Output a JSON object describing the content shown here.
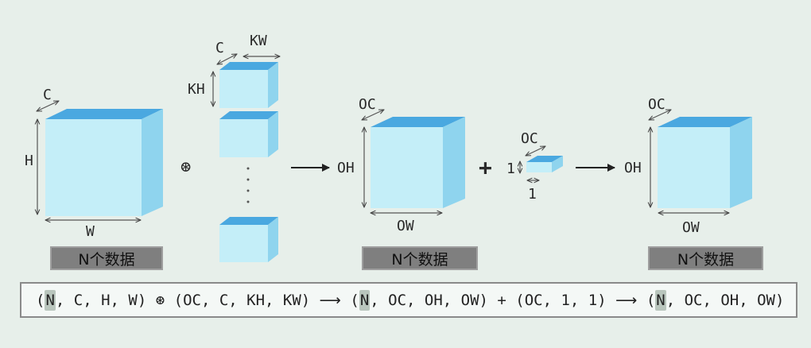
{
  "input_tensor": {
    "channel_label": "C",
    "height_label": "H",
    "width_label": "W",
    "count_badge": "N个数据"
  },
  "conv_symbol": "⊛",
  "kernel_stack": {
    "channel_label": "C",
    "kernel_width_label": "KW",
    "kernel_height_label": "KH",
    "ellipsis": "⋮"
  },
  "output_tensor": {
    "channel_label": "OC",
    "height_label": "OH",
    "width_label": "OW",
    "count_badge": "N个数据"
  },
  "plus_symbol": "+",
  "bias": {
    "channel_label": "OC",
    "height_label": "1",
    "width_label": "1"
  },
  "result_tensor": {
    "channel_label": "OC",
    "height_label": "OH",
    "width_label": "OW",
    "count_badge": "N个数据"
  },
  "formula": {
    "open1": "(",
    "n1": "N",
    "rest1": ", C, H, W) ",
    "op": "⊛",
    "kernel": " (OC, C, KH, KW) ",
    "arrow1": "⟶",
    "open2": " (",
    "n2": "N",
    "rest2": ", OC, OH, OW) + (OC, 1, 1) ",
    "arrow2": "⟶",
    "open3": " (",
    "n3": "N",
    "rest3": ", OC, OH, OW)"
  }
}
